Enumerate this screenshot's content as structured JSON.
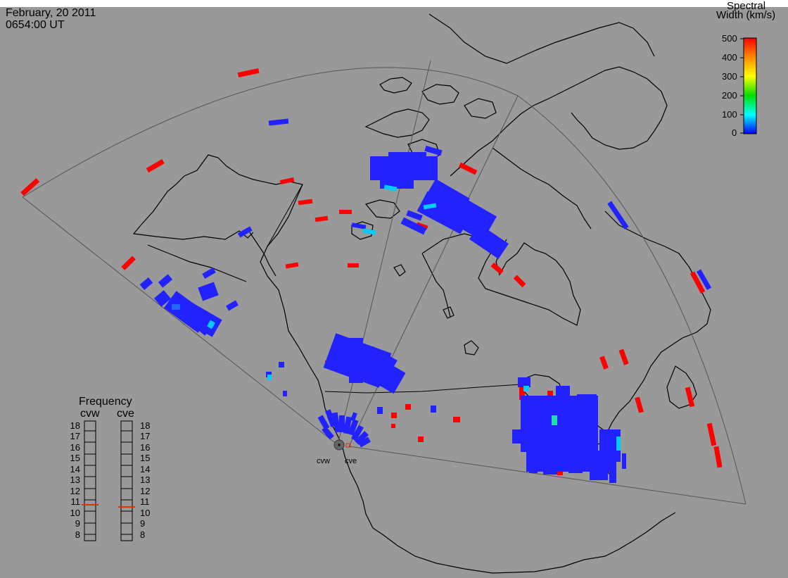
{
  "header": {
    "date": "February, 20 2011",
    "time": "0654:00 UT"
  },
  "colorbar": {
    "title_line1": "Spectral",
    "title_line2": "Width (km/s)",
    "ticks": [
      "500",
      "400",
      "300",
      "200",
      "100",
      "0"
    ],
    "gradient_colors": [
      "#ff0000",
      "#ff8800",
      "#ffff00",
      "#00dd00",
      "#00ffff",
      "#0000ff"
    ]
  },
  "frequency_panel": {
    "title": "Frequency",
    "radars": [
      {
        "name": "cvw",
        "value_mhz": 10.8
      },
      {
        "name": "cve",
        "value_mhz": 10.6
      }
    ],
    "scale": [
      "18",
      "17",
      "16",
      "15",
      "14",
      "13",
      "12",
      "11",
      "10",
      "9",
      "8"
    ]
  },
  "radar_sites": [
    {
      "name": "cvw"
    },
    {
      "name": "cve"
    }
  ],
  "colors": {
    "background": "#999999",
    "coast": "#000000",
    "fov": "#555555",
    "high_width": "#ff0000",
    "low_width": "#2222ff",
    "mid_width": "#00ccff",
    "marker": "#dd3300"
  }
}
